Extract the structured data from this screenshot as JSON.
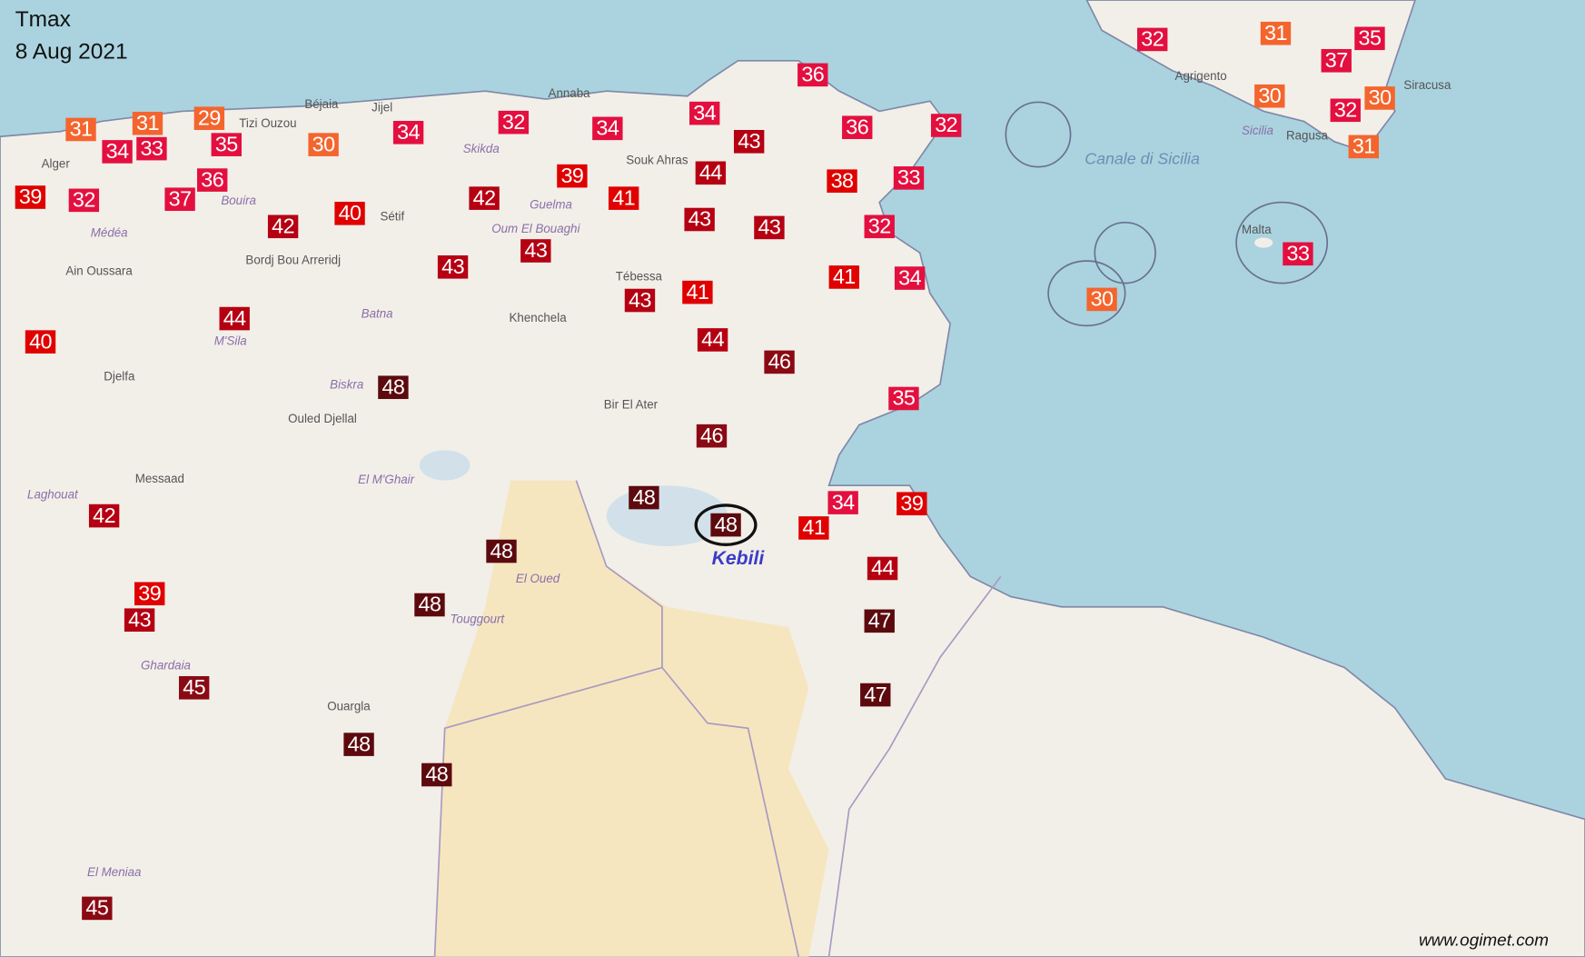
{
  "header": {
    "variable": "Tmax",
    "date": "8 Aug 2021"
  },
  "highlight": {
    "label": "Kebili",
    "value": 48
  },
  "credit": "www.ogimet.com",
  "colors": {
    "sea": "#aad3df",
    "land": "#f2efe9",
    "desert": "#f5e6c0",
    "t_le31": "#f4652e",
    "t_32_37": "#e3103f",
    "t_38_41": "#e00000",
    "t_42_44": "#b50012",
    "t_45_46": "#8a0a14",
    "t_47_48": "#5c0a0e"
  },
  "sea_labels": [
    "Canale di Sicilia"
  ],
  "places": [
    "Alger",
    "Béjaia",
    "Tizi Ouzou",
    "Jijel",
    "Skikda",
    "Annaba",
    "Guelma",
    "Souk Ahras",
    "Médéa",
    "Bouira",
    "Bordj Bou Arreridj",
    "Ain Oussara",
    "Sétif",
    "Batna",
    "Oum El Bouaghi",
    "Khenchela",
    "Tébessa",
    "M'Sila",
    "Djelfa",
    "Biskra",
    "Ouled Djellal",
    "Bir El Ater",
    "El M'Ghair",
    "Messaad",
    "Laghouat",
    "El Oued",
    "Touggourt",
    "Ghardaia",
    "Ouargla",
    "El Meniaa",
    "Agrigento",
    "Sicilia",
    "Ragusa",
    "Siracusa",
    "Malta"
  ],
  "stations": [
    31,
    31,
    33,
    34,
    29,
    35,
    30,
    34,
    32,
    34,
    34,
    36,
    43,
    36,
    32,
    39,
    32,
    37,
    36,
    42,
    40,
    42,
    39,
    41,
    44,
    43,
    43,
    38,
    33,
    32,
    43,
    43,
    43,
    41,
    41,
    34,
    44,
    40,
    44,
    46,
    48,
    35,
    46,
    48,
    48,
    34,
    39,
    41,
    42,
    48,
    44,
    39,
    43,
    48,
    47,
    45,
    47,
    48,
    48,
    45,
    32,
    31,
    35,
    37,
    30,
    30,
    32,
    31,
    33,
    30
  ]
}
